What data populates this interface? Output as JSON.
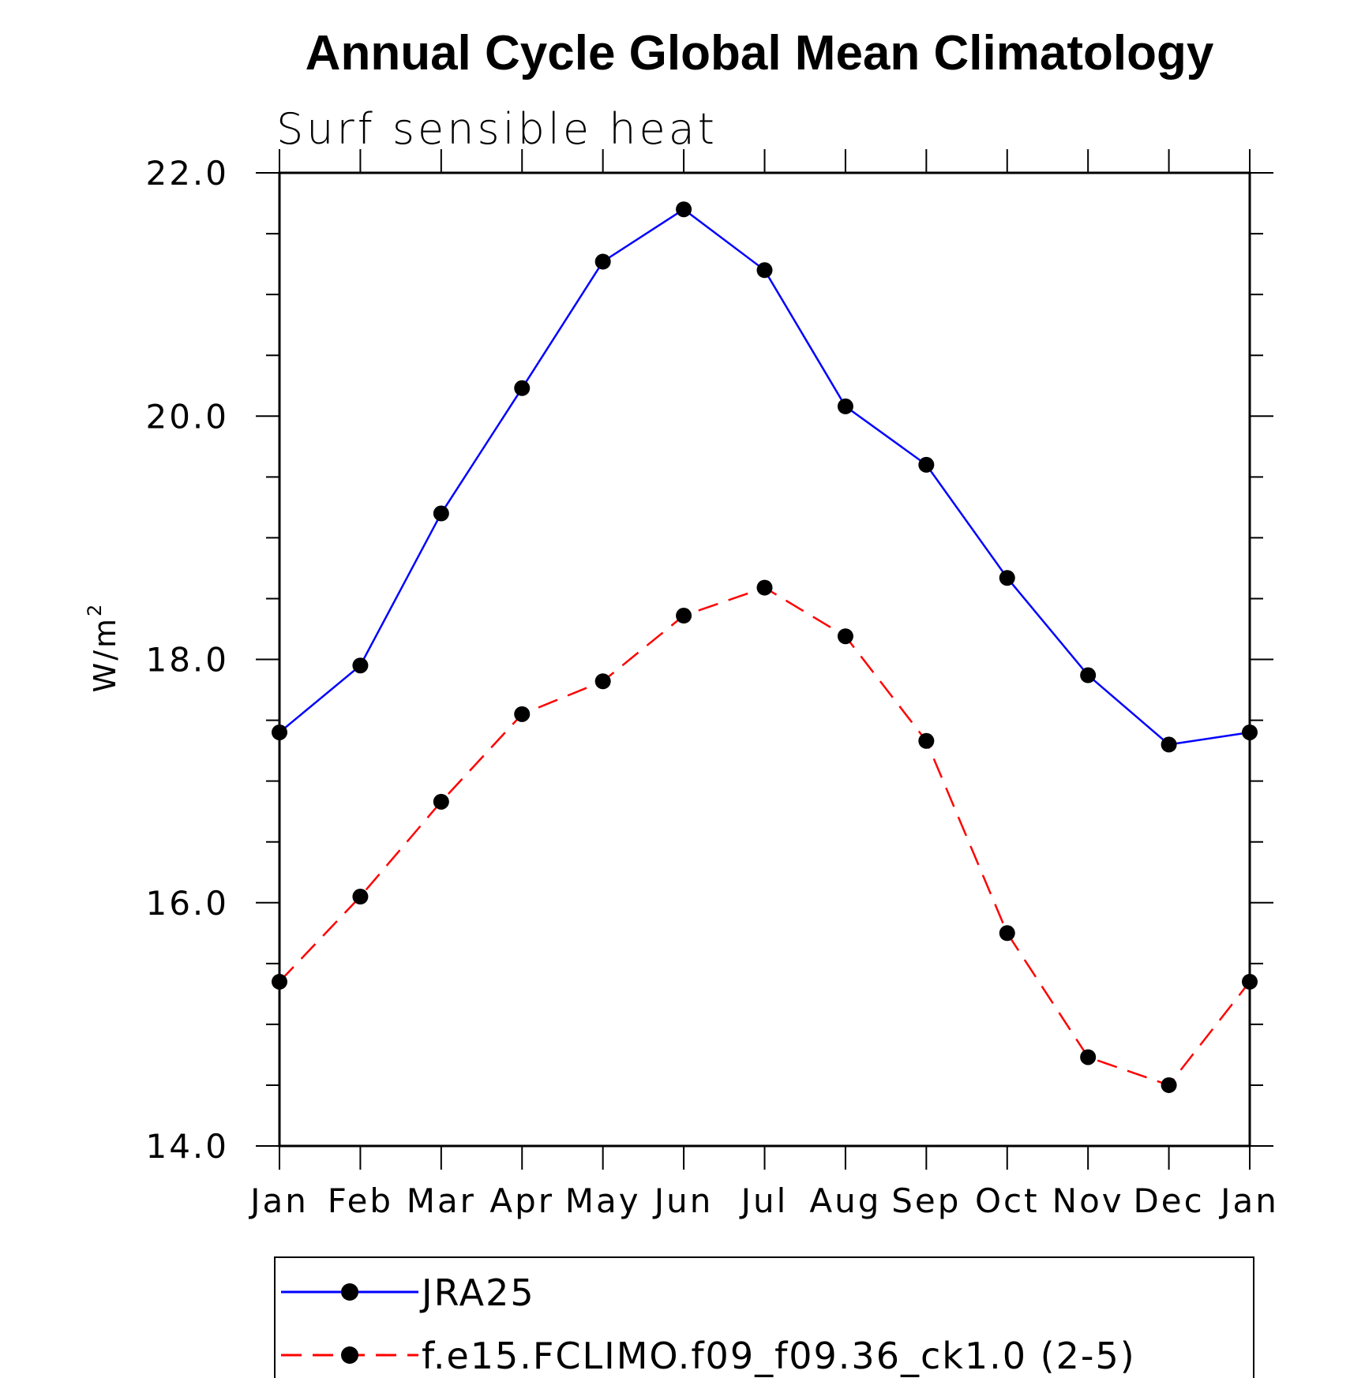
{
  "chart_data": {
    "type": "line",
    "title": "Annual Cycle Global Mean Climatology",
    "subtitle": "Surf sensible heat",
    "ylabel": "W/m",
    "ylabel_sup": "2",
    "xlabel": "",
    "categories": [
      "Jan",
      "Feb",
      "Mar",
      "Apr",
      "May",
      "Jun",
      "Jul",
      "Aug",
      "Sep",
      "Oct",
      "Nov",
      "Dec",
      "Jan"
    ],
    "ylim": [
      14.0,
      22.0
    ],
    "yticks": [
      "14.0",
      "16.0",
      "18.0",
      "20.0",
      "22.0"
    ],
    "ytick_values": [
      14.0,
      16.0,
      18.0,
      20.0,
      22.0
    ],
    "y_minor_step": 0.5,
    "legend_position": "bottom",
    "series": [
      {
        "name": "JRA25",
        "color": "#0000ff",
        "dash": "solid",
        "marker": "circle",
        "values": [
          17.4,
          17.95,
          19.2,
          20.23,
          21.27,
          21.7,
          21.2,
          20.08,
          19.6,
          18.67,
          17.87,
          17.3,
          17.4
        ]
      },
      {
        "name": "f.e15.FCLIMO.f09_f09.36_ck1.0 (2-5)",
        "color": "#ff0000",
        "dash": "dashed",
        "marker": "circle",
        "values": [
          15.35,
          16.05,
          16.83,
          17.55,
          17.82,
          18.36,
          18.59,
          18.19,
          17.33,
          15.75,
          14.73,
          14.5,
          15.35
        ]
      }
    ]
  }
}
